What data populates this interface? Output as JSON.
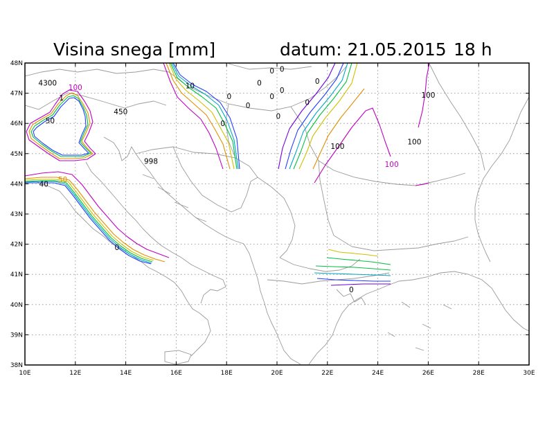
{
  "header": {
    "title": "Visina snega [mm]",
    "date_label": "datum: 21.05.2015",
    "hour_label": "18 h"
  },
  "map": {
    "lon_range": [
      10,
      30
    ],
    "lat_range": [
      38,
      48
    ],
    "x_ticks": [
      {
        "lon": 10,
        "label": "10E"
      },
      {
        "lon": 12,
        "label": "12E"
      },
      {
        "lon": 14,
        "label": "14E"
      },
      {
        "lon": 16,
        "label": "16E"
      },
      {
        "lon": 18,
        "label": "18E"
      },
      {
        "lon": 20,
        "label": "20E"
      },
      {
        "lon": 22,
        "label": "22E"
      },
      {
        "lon": 24,
        "label": "24E"
      },
      {
        "lon": 26,
        "label": "26E"
      },
      {
        "lon": 28,
        "label": "28E"
      },
      {
        "lon": 30,
        "label": "30E"
      }
    ],
    "y_ticks": [
      {
        "lat": 38,
        "label": "38N"
      },
      {
        "lat": 39,
        "label": "39N"
      },
      {
        "lat": 40,
        "label": "40N"
      },
      {
        "lat": 41,
        "label": "41N"
      },
      {
        "lat": 42,
        "label": "42N"
      },
      {
        "lat": 43,
        "label": "43N"
      },
      {
        "lat": 44,
        "label": "44N"
      },
      {
        "lat": 45,
        "label": "45N"
      },
      {
        "lat": 46,
        "label": "46N"
      },
      {
        "lat": 47,
        "label": "47N"
      },
      {
        "lat": 48,
        "label": "48N"
      }
    ],
    "grid": true,
    "colors": {
      "frame": "#000000",
      "coastline": "#9a9a9a",
      "magenta": "#c000c0",
      "purple": "#7000e0",
      "blue": "#1e3cff",
      "cyan": "#00a8c8",
      "green": "#00c040",
      "lime": "#90d020",
      "yellow": "#d0c000",
      "orange": "#e09000"
    }
  },
  "value_labels": [
    {
      "text": "4300",
      "lon": 10.9,
      "lat": 47.35,
      "color": "#000000"
    },
    {
      "text": "1",
      "lon": 11.45,
      "lat": 46.85,
      "color": "#000000"
    },
    {
      "text": "100",
      "lon": 12.0,
      "lat": 47.2,
      "color": "#c000c0"
    },
    {
      "text": "50",
      "lon": 11.0,
      "lat": 46.1,
      "color": "#000000"
    },
    {
      "text": "450",
      "lon": 13.8,
      "lat": 46.4,
      "color": "#000000"
    },
    {
      "text": "998",
      "lon": 15.0,
      "lat": 44.75,
      "color": "#000000"
    },
    {
      "text": "40",
      "lon": 10.75,
      "lat": 44.0,
      "color": "#000000"
    },
    {
      "text": "50",
      "lon": 11.5,
      "lat": 44.15,
      "color": "#e09000"
    },
    {
      "text": "0",
      "lon": 13.65,
      "lat": 41.9,
      "color": "#000000"
    },
    {
      "text": "10",
      "lon": 16.55,
      "lat": 47.25,
      "color": "#000000"
    },
    {
      "text": "0",
      "lon": 18.1,
      "lat": 46.9,
      "color": "#000000"
    },
    {
      "text": "0",
      "lon": 17.85,
      "lat": 46.0,
      "color": "#000000"
    },
    {
      "text": "0",
      "lon": 19.8,
      "lat": 47.75,
      "color": "#000000"
    },
    {
      "text": "0",
      "lon": 20.2,
      "lat": 47.8,
      "color": "#000000"
    },
    {
      "text": "0",
      "lon": 19.3,
      "lat": 47.35,
      "color": "#000000"
    },
    {
      "text": "0",
      "lon": 20.2,
      "lat": 47.1,
      "color": "#000000"
    },
    {
      "text": "0",
      "lon": 19.8,
      "lat": 46.9,
      "color": "#000000"
    },
    {
      "text": "0",
      "lon": 18.85,
      "lat": 46.6,
      "color": "#000000"
    },
    {
      "text": "0",
      "lon": 20.05,
      "lat": 46.25,
      "color": "#000000"
    },
    {
      "text": "0",
      "lon": 21.6,
      "lat": 47.4,
      "color": "#000000"
    },
    {
      "text": "0",
      "lon": 21.2,
      "lat": 46.7,
      "color": "#000000"
    },
    {
      "text": "100",
      "lon": 22.4,
      "lat": 45.25,
      "color": "#000000"
    },
    {
      "text": "100",
      "lon": 26.0,
      "lat": 46.95,
      "color": "#000000"
    },
    {
      "text": "100",
      "lon": 25.45,
      "lat": 45.4,
      "color": "#000000"
    },
    {
      "text": "100",
      "lon": 24.55,
      "lat": 44.65,
      "color": "#c000c0"
    },
    {
      "text": "0",
      "lon": 22.95,
      "lat": 40.5,
      "color": "#000000"
    }
  ]
}
